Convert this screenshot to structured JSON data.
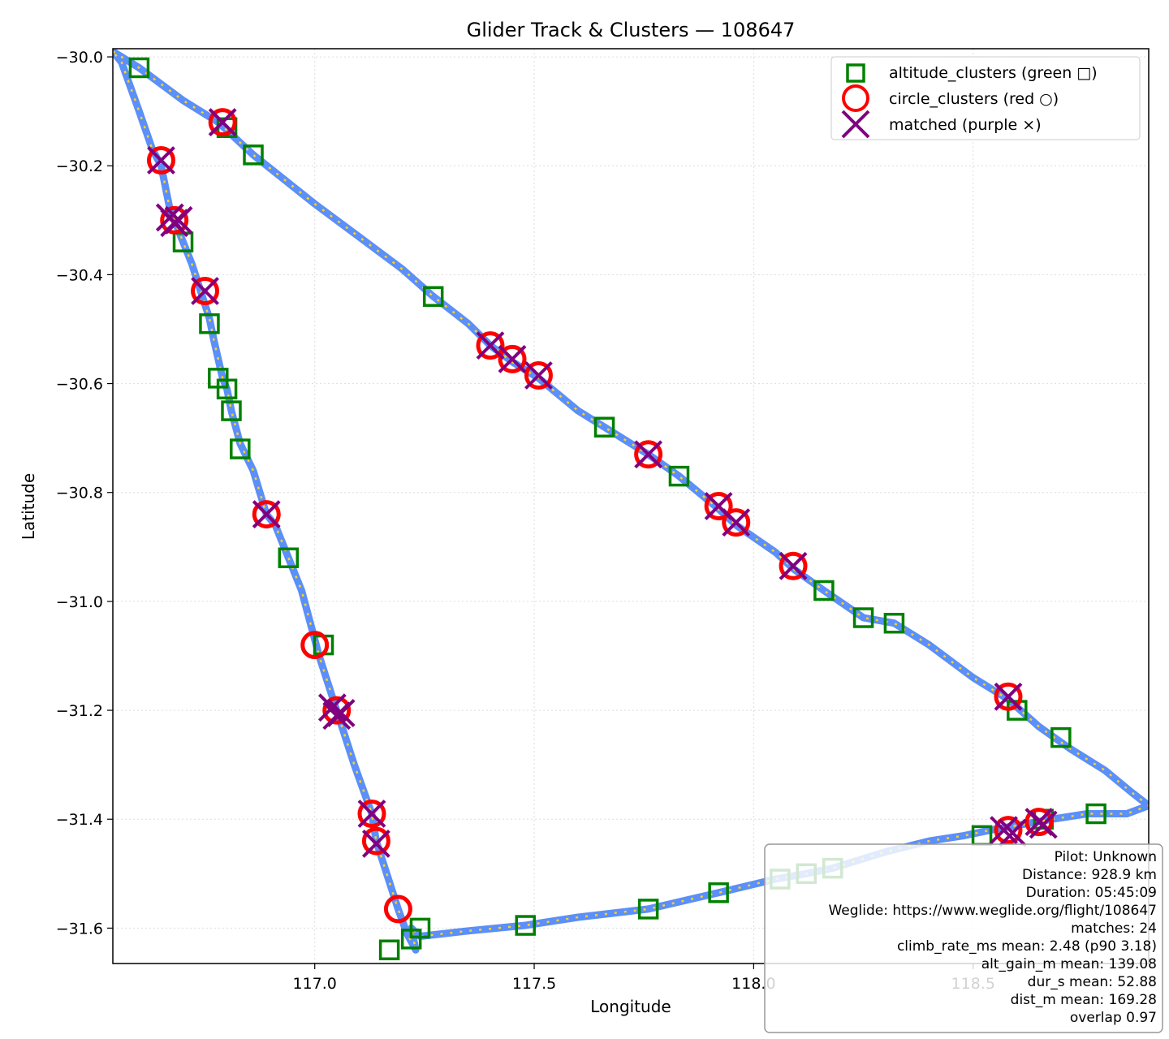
{
  "chart_data": {
    "type": "scatter",
    "title": "Glider Track & Clusters — 108647",
    "xlabel": "Longitude",
    "ylabel": "Latitude",
    "xlim": [
      116.54,
      118.9
    ],
    "ylim": [
      -31.665,
      -29.985
    ],
    "x_ticks": [
      117.0,
      117.5,
      118.0,
      118.5
    ],
    "x_tick_labels": [
      "117.0",
      "117.5",
      "118.0",
      "118.5"
    ],
    "y_ticks": [
      -30.0,
      -30.2,
      -30.4,
      -30.6,
      -30.8,
      -31.0,
      -31.2,
      -31.4,
      -31.6
    ],
    "y_tick_labels": [
      "−30.0",
      "−30.2",
      "−30.4",
      "−30.6",
      "−30.8",
      "−31.0",
      "−31.2",
      "−31.4",
      "−31.6"
    ],
    "grid": true,
    "legend_position": "top-right",
    "colors": {
      "track": "#5b8ff9",
      "track_dash": "#ffd21f",
      "altitude": "#008000",
      "circle": "#ff0000",
      "matched": "#800080"
    },
    "legend": [
      {
        "label": "altitude_clusters (green □)",
        "marker": "square"
      },
      {
        "label": "circle_clusters (red ○)",
        "marker": "circle"
      },
      {
        "label": "matched (purple ×)",
        "marker": "x"
      }
    ],
    "track": [
      [
        116.54,
        -29.99
      ],
      [
        116.6,
        -30.02
      ],
      [
        116.7,
        -30.08
      ],
      [
        116.78,
        -30.12
      ],
      [
        116.86,
        -30.18
      ],
      [
        117.0,
        -30.27
      ],
      [
        117.1,
        -30.33
      ],
      [
        117.2,
        -30.39
      ],
      [
        117.27,
        -30.44
      ],
      [
        117.35,
        -30.49
      ],
      [
        117.4,
        -30.53
      ],
      [
        117.45,
        -30.56
      ],
      [
        117.51,
        -30.59
      ],
      [
        117.6,
        -30.65
      ],
      [
        117.66,
        -30.68
      ],
      [
        117.76,
        -30.73
      ],
      [
        117.83,
        -30.77
      ],
      [
        117.92,
        -30.83
      ],
      [
        117.96,
        -30.86
      ],
      [
        118.05,
        -30.91
      ],
      [
        118.09,
        -30.94
      ],
      [
        118.16,
        -30.98
      ],
      [
        118.25,
        -31.03
      ],
      [
        118.32,
        -31.04
      ],
      [
        118.4,
        -31.08
      ],
      [
        118.5,
        -31.14
      ],
      [
        118.58,
        -31.18
      ],
      [
        118.65,
        -31.23
      ],
      [
        118.72,
        -31.27
      ],
      [
        118.8,
        -31.31
      ],
      [
        118.86,
        -31.35
      ],
      [
        118.9,
        -31.375
      ],
      [
        118.85,
        -31.39
      ],
      [
        118.76,
        -31.39
      ],
      [
        118.68,
        -31.4
      ],
      [
        118.61,
        -31.41
      ],
      [
        118.54,
        -31.42
      ],
      [
        118.48,
        -31.43
      ],
      [
        118.4,
        -31.44
      ],
      [
        118.3,
        -31.46
      ],
      [
        118.18,
        -31.49
      ],
      [
        118.12,
        -31.5
      ],
      [
        118.05,
        -31.51
      ],
      [
        117.92,
        -31.535
      ],
      [
        117.76,
        -31.565
      ],
      [
        117.6,
        -31.58
      ],
      [
        117.48,
        -31.595
      ],
      [
        117.35,
        -31.605
      ],
      [
        117.24,
        -31.615
      ],
      [
        117.22,
        -31.6
      ],
      [
        117.23,
        -31.64
      ],
      [
        117.21,
        -31.61
      ],
      [
        117.19,
        -31.565
      ],
      [
        117.16,
        -31.49
      ],
      [
        117.14,
        -31.44
      ],
      [
        117.13,
        -31.39
      ],
      [
        117.09,
        -31.3
      ],
      [
        117.05,
        -31.2
      ],
      [
        117.01,
        -31.1
      ],
      [
        116.99,
        -31.04
      ],
      [
        116.97,
        -30.98
      ],
      [
        116.94,
        -30.92
      ],
      [
        116.91,
        -30.86
      ],
      [
        116.89,
        -30.84
      ],
      [
        116.86,
        -30.76
      ],
      [
        116.83,
        -30.71
      ],
      [
        116.81,
        -30.65
      ],
      [
        116.8,
        -30.61
      ],
      [
        116.79,
        -30.59
      ],
      [
        116.77,
        -30.52
      ],
      [
        116.76,
        -30.48
      ],
      [
        116.74,
        -30.43
      ],
      [
        116.72,
        -30.38
      ],
      [
        116.7,
        -30.34
      ],
      [
        116.68,
        -30.3
      ],
      [
        116.67,
        -30.28
      ],
      [
        116.66,
        -30.24
      ],
      [
        116.65,
        -30.2
      ],
      [
        116.63,
        -30.17
      ],
      [
        116.6,
        -30.1
      ],
      [
        116.56,
        -30.01
      ],
      [
        116.54,
        -29.99
      ]
    ],
    "altitude_clusters": [
      {
        "x": 116.6,
        "y": -30.02
      },
      {
        "x": 116.8,
        "y": -30.13
      },
      {
        "x": 116.86,
        "y": -30.18
      },
      {
        "x": 116.7,
        "y": -30.34
      },
      {
        "x": 116.76,
        "y": -30.49
      },
      {
        "x": 116.78,
        "y": -30.59
      },
      {
        "x": 116.8,
        "y": -30.61
      },
      {
        "x": 116.81,
        "y": -30.65
      },
      {
        "x": 116.83,
        "y": -30.72
      },
      {
        "x": 116.94,
        "y": -30.92
      },
      {
        "x": 117.27,
        "y": -30.44
      },
      {
        "x": 117.66,
        "y": -30.68
      },
      {
        "x": 117.83,
        "y": -30.77
      },
      {
        "x": 118.16,
        "y": -30.98
      },
      {
        "x": 118.25,
        "y": -31.03
      },
      {
        "x": 118.32,
        "y": -31.04
      },
      {
        "x": 118.6,
        "y": -31.2
      },
      {
        "x": 118.7,
        "y": -31.25
      },
      {
        "x": 118.78,
        "y": -31.39
      },
      {
        "x": 118.66,
        "y": -31.4
      },
      {
        "x": 118.52,
        "y": -31.43
      },
      {
        "x": 118.18,
        "y": -31.49
      },
      {
        "x": 118.12,
        "y": -31.5
      },
      {
        "x": 118.06,
        "y": -31.51
      },
      {
        "x": 117.92,
        "y": -31.535
      },
      {
        "x": 117.76,
        "y": -31.565
      },
      {
        "x": 117.48,
        "y": -31.595
      },
      {
        "x": 117.24,
        "y": -31.6
      },
      {
        "x": 117.17,
        "y": -31.64
      },
      {
        "x": 117.22,
        "y": -31.62
      },
      {
        "x": 117.02,
        "y": -31.08
      }
    ],
    "circle_clusters": [
      {
        "x": 116.79,
        "y": -30.12
      },
      {
        "x": 116.65,
        "y": -30.19
      },
      {
        "x": 116.68,
        "y": -30.3
      },
      {
        "x": 116.75,
        "y": -30.43
      },
      {
        "x": 116.89,
        "y": -30.84
      },
      {
        "x": 117.0,
        "y": -31.08
      },
      {
        "x": 117.05,
        "y": -31.2
      },
      {
        "x": 117.13,
        "y": -31.39
      },
      {
        "x": 117.14,
        "y": -31.44
      },
      {
        "x": 117.19,
        "y": -31.565
      },
      {
        "x": 117.4,
        "y": -30.53
      },
      {
        "x": 117.45,
        "y": -30.555
      },
      {
        "x": 117.51,
        "y": -30.585
      },
      {
        "x": 117.76,
        "y": -30.73
      },
      {
        "x": 117.92,
        "y": -30.825
      },
      {
        "x": 117.96,
        "y": -30.855
      },
      {
        "x": 118.09,
        "y": -30.935
      },
      {
        "x": 118.58,
        "y": -31.175
      },
      {
        "x": 118.58,
        "y": -31.42
      },
      {
        "x": 118.65,
        "y": -31.405
      }
    ],
    "matched": [
      {
        "x": 116.79,
        "y": -30.12
      },
      {
        "x": 116.65,
        "y": -30.19
      },
      {
        "x": 116.67,
        "y": -30.295
      },
      {
        "x": 116.69,
        "y": -30.3
      },
      {
        "x": 116.75,
        "y": -30.43
      },
      {
        "x": 116.89,
        "y": -30.84
      },
      {
        "x": 117.04,
        "y": -31.195
      },
      {
        "x": 117.06,
        "y": -31.205
      },
      {
        "x": 117.13,
        "y": -31.39
      },
      {
        "x": 117.14,
        "y": -31.445
      },
      {
        "x": 117.4,
        "y": -30.53
      },
      {
        "x": 117.45,
        "y": -30.555
      },
      {
        "x": 117.51,
        "y": -30.585
      },
      {
        "x": 117.76,
        "y": -30.73
      },
      {
        "x": 117.92,
        "y": -30.825
      },
      {
        "x": 117.96,
        "y": -30.855
      },
      {
        "x": 118.09,
        "y": -30.935
      },
      {
        "x": 118.58,
        "y": -31.175
      },
      {
        "x": 118.57,
        "y": -31.42
      },
      {
        "x": 118.59,
        "y": -31.425
      },
      {
        "x": 118.65,
        "y": -31.405
      },
      {
        "x": 118.66,
        "y": -31.41
      },
      {
        "x": 117.05,
        "y": -31.21
      },
      {
        "x": 116.68,
        "y": -30.305
      }
    ],
    "info_box": [
      "Pilot: Unknown",
      "Distance: 928.9 km",
      "Duration: 05:45:09",
      "Weglide: https://www.weglide.org/flight/108647",
      "matches: 24",
      "climb_rate_ms mean: 2.48 (p90 3.18)",
      "alt_gain_m mean: 139.08",
      "dur_s mean: 52.88",
      "dist_m mean: 169.28",
      "overlap 0.97"
    ]
  }
}
